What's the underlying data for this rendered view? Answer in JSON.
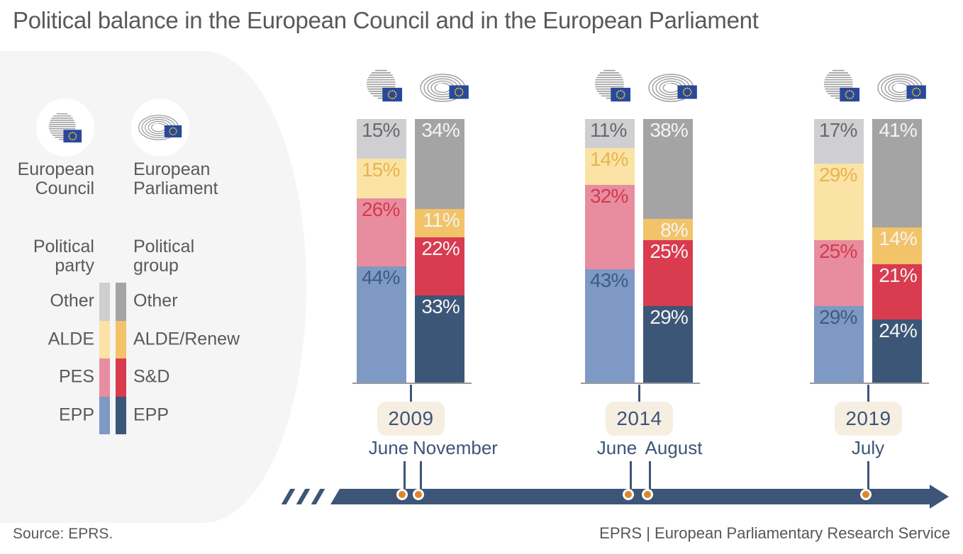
{
  "header": {
    "title": "Political balance in the European Council and in the European Parliament"
  },
  "footer": {
    "source": "Source: EPRS.",
    "credit": "EPRS | European Parliamentary Research Service"
  },
  "legend": {
    "council_title": [
      "European",
      "Council"
    ],
    "parliament_title": [
      "European",
      "Parliament"
    ],
    "party_col_title": [
      "Political",
      "party"
    ],
    "group_col_title": [
      "Political",
      "group"
    ],
    "rows": [
      {
        "party": "Other",
        "group": "Other"
      },
      {
        "party": "ALDE",
        "group": "ALDE/Renew"
      },
      {
        "party": "PES",
        "group": "S&D"
      },
      {
        "party": "EPP",
        "group": "EPP"
      }
    ]
  },
  "icons": [
    "eu-council-icon",
    "eu-parliament-icon",
    "eu-flag-icon"
  ],
  "colors": {
    "council_segments": [
      "#7e99c3",
      "#e88d9f",
      "#fae3a5",
      "#cfcfd1"
    ],
    "council_label_text": [
      "#3e5b85",
      "#d23a4e",
      "#e8b44e",
      "#6a6a6d"
    ],
    "parliament_segments": [
      "#3c5677",
      "#d93b4f",
      "#f2c368",
      "#a4a4a5"
    ],
    "parliament_label_text": "#f4f4f4",
    "timeline": "#3d5577",
    "dot_orange": "#e0852e",
    "year_box_bg": "#f6eee1",
    "panel_bg": "#f5f5f6",
    "text_dark": "#58595b",
    "flag_blue": "#29489d",
    "flag_stars": "#f7d117",
    "icon_gray": "#9b9b9b"
  },
  "chart_data": {
    "type": "bar",
    "stacked": true,
    "unit": "%",
    "value_axis_max": 100,
    "council_series": [
      "EPP",
      "PES",
      "ALDE",
      "Other"
    ],
    "parliament_series": [
      "EPP",
      "S&D",
      "ALDE/Renew",
      "Other"
    ],
    "groups": [
      {
        "year": "2009",
        "months": [
          "June",
          "November"
        ],
        "council_values": [
          44,
          26,
          15,
          15
        ],
        "parliament_values": [
          33,
          22,
          11,
          34
        ]
      },
      {
        "year": "2014",
        "months": [
          "June",
          "August"
        ],
        "council_values": [
          43,
          32,
          14,
          11
        ],
        "parliament_values": [
          29,
          25,
          8,
          38
        ]
      },
      {
        "year": "2019",
        "months": [
          "July"
        ],
        "council_values": [
          29,
          25,
          29,
          17
        ],
        "parliament_values": [
          24,
          21,
          14,
          41
        ]
      }
    ]
  }
}
